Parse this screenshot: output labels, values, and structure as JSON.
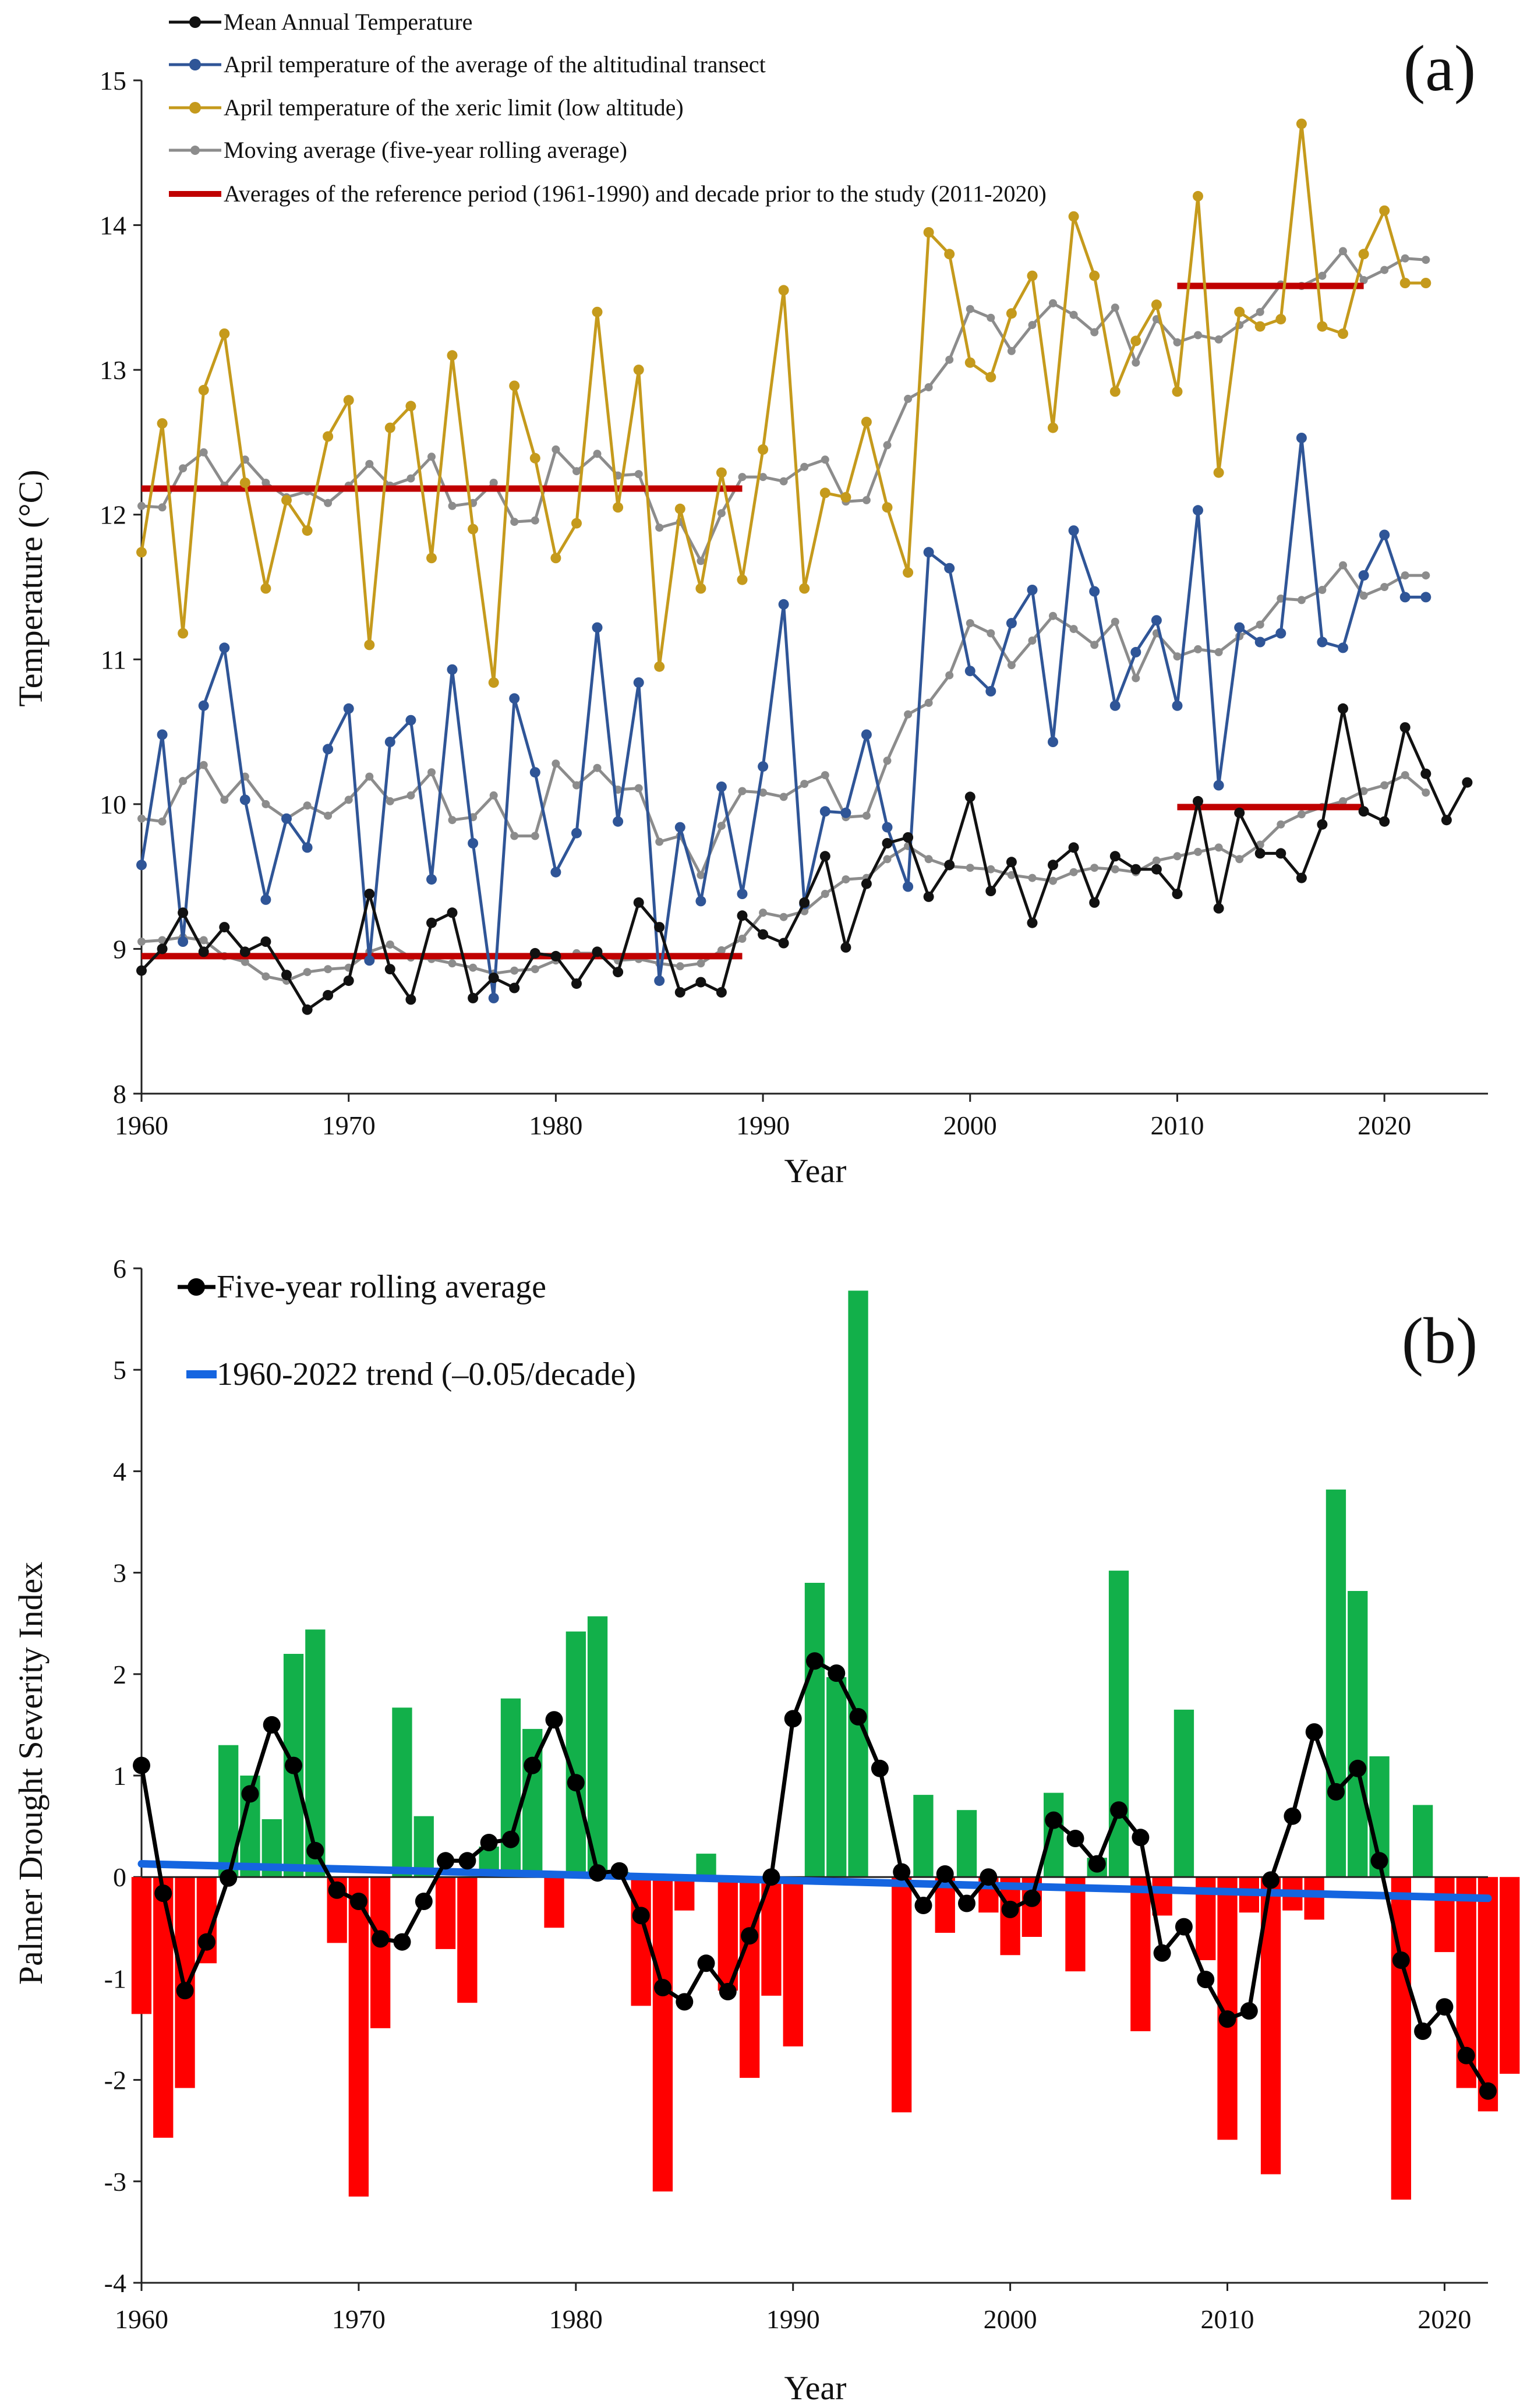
{
  "chart_data": [
    {
      "panel": "(a)",
      "type": "line",
      "xlabel": "Year",
      "ylabel": "Temperature (°C)",
      "xlim": [
        1960,
        2025
      ],
      "ylim": [
        8,
        15
      ],
      "xticks": [
        1960,
        1970,
        1980,
        1990,
        2000,
        2010,
        2020
      ],
      "yticks": [
        8,
        9,
        10,
        11,
        12,
        13,
        14,
        15
      ],
      "legend_position": "top-left",
      "colors": {
        "mean": "#111111",
        "transect": "#2f5597",
        "xeric": "#c59a1c",
        "moving": "#8c8c8c",
        "reference": "#c00000"
      },
      "series": [
        {
          "key": "mean",
          "name": "Mean Annual Temperature",
          "x_start": 1960,
          "values": [
            8.85,
            9.0,
            9.25,
            8.98,
            9.15,
            8.98,
            9.05,
            8.82,
            8.58,
            8.68,
            8.78,
            9.38,
            8.86,
            8.65,
            9.18,
            9.25,
            8.66,
            8.8,
            8.73,
            8.97,
            8.95,
            8.76,
            8.98,
            8.84,
            9.32,
            9.15,
            8.7,
            8.77,
            8.7,
            9.23,
            9.1,
            9.04,
            9.32,
            9.64,
            9.01,
            9.45,
            9.73,
            9.77,
            9.36,
            9.58,
            10.05,
            9.4,
            9.6,
            9.18,
            9.58,
            9.7,
            9.32,
            9.64,
            9.55,
            9.55,
            9.38,
            10.02,
            9.28,
            9.94,
            9.66,
            9.66,
            9.49,
            9.86,
            10.66,
            9.95,
            9.88,
            10.53,
            10.21,
            9.89,
            10.15
          ]
        },
        {
          "key": "transect",
          "name": "April temperature of the average of  the altitudinal transect",
          "x_start": 1960,
          "values": [
            9.58,
            10.48,
            9.05,
            10.68,
            11.08,
            10.03,
            9.34,
            9.9,
            9.7,
            10.38,
            10.66,
            8.92,
            10.43,
            10.58,
            9.48,
            10.93,
            9.73,
            8.66,
            10.73,
            10.22,
            9.53,
            9.8,
            11.22,
            9.88,
            10.84,
            8.78,
            9.84,
            9.33,
            10.12,
            9.38,
            10.26,
            11.38,
            9.31,
            9.95,
            9.94,
            10.48,
            9.84,
            9.43,
            11.74,
            11.63,
            10.92,
            10.78,
            11.25,
            11.48,
            10.43,
            11.89,
            11.47,
            10.68,
            11.05,
            11.27,
            10.68,
            12.03,
            10.13,
            11.22,
            11.12,
            11.18,
            12.53,
            11.12,
            11.08,
            11.58,
            11.86,
            11.43,
            11.43
          ]
        },
        {
          "key": "xeric",
          "name": "April temperature of the xeric limit (low altitude)",
          "x_start": 1960,
          "values": [
            11.74,
            12.63,
            11.18,
            12.86,
            13.25,
            12.22,
            11.49,
            12.1,
            11.89,
            12.54,
            12.79,
            11.1,
            12.6,
            12.75,
            11.7,
            13.1,
            11.9,
            10.84,
            12.89,
            12.39,
            11.7,
            11.94,
            13.4,
            12.05,
            13.0,
            10.95,
            12.04,
            11.49,
            12.29,
            11.55,
            12.45,
            13.55,
            11.49,
            12.15,
            12.12,
            12.64,
            12.05,
            11.6,
            13.95,
            13.8,
            13.05,
            12.95,
            13.39,
            13.65,
            12.6,
            14.06,
            13.65,
            12.85,
            13.2,
            13.45,
            12.85,
            14.2,
            12.29,
            13.4,
            13.3,
            13.35,
            14.7,
            13.3,
            13.25,
            13.8,
            14.1,
            13.6,
            13.6
          ]
        },
        {
          "key": "moving",
          "name": "Moving average (five-year rolling average)",
          "x_start": 1960,
          "subseries": [
            [
              12.06,
              12.05,
              12.32,
              12.43,
              12.2,
              12.38,
              12.22,
              12.12,
              12.16,
              12.08,
              12.2,
              12.35,
              12.2,
              12.25,
              12.4,
              12.06,
              12.08,
              12.22,
              11.95,
              11.96,
              12.45,
              12.3,
              12.42,
              12.27,
              12.28,
              11.91,
              11.95,
              11.68,
              12.01,
              12.26,
              12.26,
              12.23,
              12.33,
              12.38,
              12.09,
              12.1,
              12.48,
              12.8,
              12.88,
              13.07,
              13.42,
              13.36,
              13.13,
              13.31,
              13.46,
              13.38,
              13.26,
              13.43,
              13.05,
              13.35,
              13.19,
              13.24,
              13.21,
              13.31,
              13.4,
              13.59,
              13.58,
              13.65,
              13.82,
              13.62,
              13.69,
              13.77,
              13.76
            ],
            [
              9.9,
              9.88,
              10.16,
              10.27,
              10.03,
              10.19,
              10.0,
              9.9,
              9.99,
              9.92,
              10.03,
              10.19,
              10.02,
              10.06,
              10.22,
              9.89,
              9.91,
              10.06,
              9.78,
              9.78,
              10.28,
              10.13,
              10.25,
              10.1,
              10.11,
              9.74,
              9.78,
              9.51,
              9.85,
              10.09,
              10.08,
              10.05,
              10.14,
              10.2,
              9.91,
              9.92,
              10.3,
              10.62,
              10.7,
              10.89,
              11.25,
              11.18,
              10.96,
              11.13,
              11.3,
              11.21,
              11.1,
              11.26,
              10.87,
              11.18,
              11.02,
              11.07,
              11.05,
              11.16,
              11.24,
              11.42,
              11.41,
              11.48,
              11.65,
              11.44,
              11.5,
              11.58,
              11.58
            ],
            [
              9.05,
              9.06,
              9.08,
              9.06,
              8.95,
              8.91,
              8.81,
              8.78,
              8.84,
              8.86,
              8.87,
              8.98,
              9.03,
              8.94,
              8.93,
              8.9,
              8.87,
              8.83,
              8.85,
              8.86,
              8.92,
              8.97,
              8.97,
              8.92,
              8.93,
              8.9,
              8.88,
              8.9,
              8.99,
              9.07,
              9.25,
              9.22,
              9.26,
              9.38,
              9.48,
              9.49,
              9.62,
              9.71,
              9.62,
              9.57,
              9.56,
              9.55,
              9.51,
              9.49,
              9.47,
              9.53,
              9.56,
              9.55,
              9.53,
              9.61,
              9.64,
              9.67,
              9.7,
              9.62,
              9.72,
              9.86,
              9.93,
              9.98,
              10.02,
              10.09,
              10.13,
              10.2,
              10.08
            ]
          ]
        },
        {
          "key": "reference",
          "name": "Averages of the reference period (1961-1990) and decade prior to the study (2011-2020)",
          "segments": [
            {
              "x": [
                1960,
                1989
              ],
              "y": 12.18
            },
            {
              "x": [
                1960,
                1989
              ],
              "y": 8.95
            },
            {
              "x": [
                2010,
                2019
              ],
              "y": 13.58
            },
            {
              "x": [
                2010,
                2019
              ],
              "y": 9.98
            }
          ]
        }
      ],
      "panel_label": "(a)"
    },
    {
      "panel": "(b)",
      "type": "bar",
      "xlabel": "Year",
      "ylabel": "Palmer Drought Severity Index",
      "xlim": [
        1960,
        2022
      ],
      "ylim": [
        -4,
        6
      ],
      "xticks": [
        1960,
        1970,
        1980,
        1990,
        2000,
        2010,
        2020
      ],
      "yticks": [
        -4,
        -3,
        -2,
        -1,
        0,
        1,
        2,
        3,
        4,
        5,
        6
      ],
      "legend_position": "top-left",
      "colors": {
        "positive": "#12b04a",
        "negative": "#ff0000",
        "rolling": "#000000",
        "trend": "#1565e0"
      },
      "bars": {
        "x_start": 1960,
        "values": [
          -1.35,
          -2.57,
          -2.08,
          -0.85,
          1.3,
          1.0,
          0.57,
          2.2,
          2.44,
          -0.65,
          -3.15,
          -1.49,
          1.67,
          0.6,
          -0.71,
          -1.24,
          0.3,
          1.76,
          1.46,
          -0.5,
          2.42,
          2.57,
          0.05,
          -1.27,
          -3.1,
          -0.33,
          0.23,
          -1.12,
          -1.98,
          -1.17,
          -1.67,
          2.9,
          1.97,
          5.78,
          0.0,
          -2.32,
          0.81,
          -0.55,
          0.66,
          -0.35,
          -0.77,
          -0.59,
          0.83,
          -0.93,
          0.19,
          3.02,
          -1.52,
          -0.38,
          1.65,
          -0.82,
          -2.59,
          -0.35,
          -2.93,
          -0.33,
          -0.42,
          3.82,
          2.82,
          1.19,
          -3.18,
          0.71,
          -0.74,
          -2.08,
          -2.31,
          -1.94
        ]
      },
      "series": [
        {
          "key": "rolling",
          "name": "Five-year rolling average",
          "x_start": 1960,
          "values": [
            1.1,
            -0.16,
            -1.12,
            -0.64,
            -0.01,
            0.82,
            1.5,
            1.1,
            0.26,
            -0.13,
            -0.24,
            -0.61,
            -0.64,
            -0.24,
            0.16,
            0.16,
            0.34,
            0.37,
            1.1,
            1.55,
            0.93,
            0.04,
            0.06,
            -0.38,
            -1.09,
            -1.23,
            -0.85,
            -1.13,
            -0.58,
            0.0,
            1.56,
            2.13,
            2.01,
            1.58,
            1.07,
            0.05,
            -0.28,
            0.03,
            -0.26,
            0.0,
            -0.32,
            -0.21,
            0.56,
            0.38,
            0.13,
            0.66,
            0.39,
            -0.75,
            -0.49,
            -1.01,
            -1.4,
            -1.32,
            -0.03,
            0.6,
            1.43,
            0.84,
            1.07,
            0.16,
            -0.82,
            -1.52,
            -1.28,
            -1.76,
            -2.11
          ]
        },
        {
          "key": "trend",
          "name": "1960-2022 trend (–0.05/decade)",
          "x": [
            1960,
            2022
          ],
          "values": [
            0.13,
            -0.21
          ]
        }
      ],
      "panel_label": "(b)"
    }
  ]
}
